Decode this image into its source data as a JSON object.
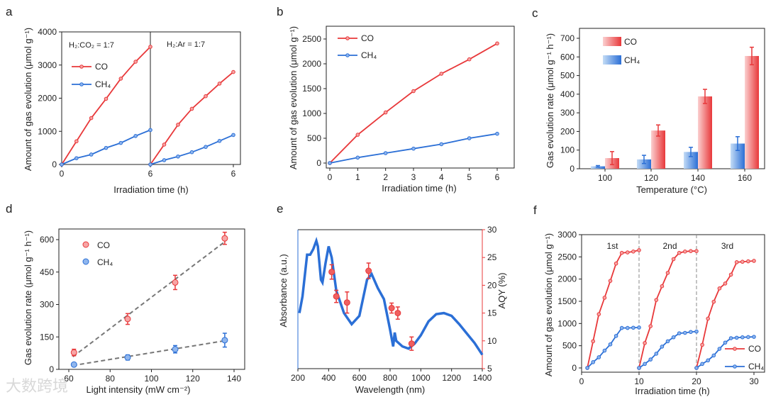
{
  "colors": {
    "co": "#e8383a",
    "ch4": "#2b6fd6",
    "fit": "#777777",
    "axis": "#222222"
  },
  "watermark": "大数跨境",
  "chart_data": [
    {
      "id": "a",
      "panel_label": "a",
      "type": "line",
      "ylabel": "Amount of gas evolution (μmol g⁻¹)",
      "xlabel": "Irradiation time (h)",
      "ylim": [
        0,
        4000
      ],
      "yticks": [
        0,
        1000,
        2000,
        3000,
        4000
      ],
      "subpanels": [
        {
          "annotation": "H₂:CO₂ = 1:7",
          "xlim": [
            0,
            6
          ],
          "xticks": [
            0,
            6
          ],
          "series": [
            {
              "name": "CO",
              "x": [
                0,
                1,
                2,
                3,
                4,
                5,
                6
              ],
              "values": [
                0,
                700,
                1400,
                1980,
                2590,
                3100,
                3550
              ]
            },
            {
              "name": "CH₄",
              "x": [
                0,
                1,
                2,
                3,
                4,
                5,
                6
              ],
              "values": [
                0,
                190,
                300,
                500,
                650,
                860,
                1040
              ]
            }
          ]
        },
        {
          "annotation": "H₂:Ar = 1:7",
          "xlim": [
            0,
            6
          ],
          "xticks": [
            6
          ],
          "series": [
            {
              "name": "CO",
              "x": [
                0,
                1,
                2,
                3,
                4,
                5,
                6
              ],
              "values": [
                0,
                600,
                1200,
                1680,
                2060,
                2440,
                2790
              ]
            },
            {
              "name": "CH₄",
              "x": [
                0,
                1,
                2,
                3,
                4,
                5,
                6
              ],
              "values": [
                0,
                130,
                240,
                370,
                530,
                710,
                890
              ]
            }
          ]
        }
      ],
      "legend": [
        "CO",
        "CH₄"
      ]
    },
    {
      "id": "b",
      "panel_label": "b",
      "type": "line",
      "ylabel": "Amount of gas evolution (μmol g⁻¹)",
      "xlabel": "Irradiation time (h)",
      "xlim": [
        0,
        6
      ],
      "xticks": [
        0,
        1,
        2,
        3,
        4,
        5,
        6
      ],
      "ylim": [
        0,
        2700
      ],
      "yticks": [
        0,
        500,
        1000,
        1500,
        2000,
        2500
      ],
      "series": [
        {
          "name": "CO",
          "x": [
            0,
            1,
            2,
            3,
            4,
            5,
            6
          ],
          "values": [
            0,
            570,
            1020,
            1450,
            1800,
            2090,
            2410
          ]
        },
        {
          "name": "CH₄",
          "x": [
            0,
            1,
            2,
            3,
            4,
            5,
            6
          ],
          "values": [
            0,
            110,
            200,
            290,
            380,
            500,
            590
          ]
        }
      ],
      "legend": [
        "CO",
        "CH₄"
      ]
    },
    {
      "id": "c",
      "panel_label": "c",
      "type": "bar",
      "ylabel": "Gas evolution rate (μmol g⁻¹ h⁻¹)",
      "xlabel": "Temperature (°C)",
      "categories": [
        "100",
        "120",
        "140",
        "160"
      ],
      "ylim": [
        0,
        750
      ],
      "yticks": [
        0,
        100,
        200,
        300,
        400,
        500,
        600,
        700
      ],
      "series": [
        {
          "name": "CH₄",
          "values": [
            13,
            50,
            90,
            135
          ],
          "errors": [
            4,
            22,
            25,
            37
          ]
        },
        {
          "name": "CO",
          "values": [
            57,
            205,
            388,
            605
          ],
          "errors": [
            35,
            30,
            38,
            47
          ]
        }
      ],
      "legend": [
        "CO",
        "CH₄"
      ]
    },
    {
      "id": "d",
      "panel_label": "d",
      "type": "scatter",
      "ylabel": "Gas evolution rate (μmol g⁻¹ h⁻¹)",
      "xlabel": "Light intensity (mW cm⁻²)",
      "xlim": [
        55,
        145
      ],
      "xticks": [
        60,
        80,
        100,
        120,
        140
      ],
      "ylim": [
        0,
        660
      ],
      "yticks": [
        0,
        150,
        300,
        450,
        600
      ],
      "series": [
        {
          "name": "CO",
          "x": [
            62.5,
            88.5,
            111.5,
            135.5
          ],
          "values": [
            78,
            233,
            402,
            606
          ],
          "errors": [
            15,
            25,
            33,
            28
          ],
          "fit": "linear"
        },
        {
          "name": "CH₄",
          "x": [
            62.5,
            88.5,
            111.5,
            135.5
          ],
          "values": [
            22,
            55,
            93,
            135
          ],
          "errors": [
            5,
            12,
            17,
            32
          ],
          "fit": "linear"
        }
      ],
      "legend": [
        "CO",
        "CH₄"
      ]
    },
    {
      "id": "e",
      "panel_label": "e",
      "type": "line+scatter",
      "ylabel": "Absorbance (a.u.)",
      "y2label": "AQY (%)",
      "xlabel": "Wavelength (nm)",
      "xlim": [
        200,
        1400
      ],
      "xticks": [
        200,
        400,
        600,
        800,
        1000,
        1200,
        1400
      ],
      "y2lim": [
        5,
        30
      ],
      "y2ticks": [
        5,
        10,
        15,
        20,
        25,
        30
      ],
      "absorbance": {
        "x": [
          210,
          230,
          260,
          280,
          300,
          320,
          330,
          350,
          360,
          380,
          400,
          420,
          450,
          500,
          550,
          600,
          650,
          680,
          720,
          760,
          800,
          820,
          830,
          840,
          880,
          920,
          960,
          1000,
          1050,
          1100,
          1150,
          1200,
          1250,
          1300,
          1350,
          1400
        ],
        "values": [
          15,
          18,
          25.5,
          25.5,
          26.5,
          28,
          27,
          21,
          20.5,
          24,
          27,
          25,
          19,
          15,
          13,
          14.5,
          21,
          22,
          19.5,
          17.5,
          12,
          9,
          11.5,
          10,
          9,
          8.6,
          9.5,
          11,
          13.5,
          14.8,
          15,
          14.5,
          13,
          11.3,
          9.6,
          7.5
        ]
      },
      "aqy": {
        "x": [
          420,
          450,
          520,
          660,
          810,
          850,
          940
        ],
        "values": [
          22.4,
          18,
          16.9,
          22.6,
          15.9,
          15,
          9.5
        ],
        "errors": [
          1.3,
          1.1,
          1.9,
          1.4,
          0.9,
          1.1,
          1.2
        ]
      }
    },
    {
      "id": "f",
      "panel_label": "f",
      "type": "line",
      "ylabel": "Amount of gas evolution (μmol g⁻¹)",
      "xlabel": "Irradiation time (h)",
      "xlim": [
        0,
        31
      ],
      "xticks": [
        0,
        10,
        20,
        30
      ],
      "ylim": [
        0,
        3000
      ],
      "yticks": [
        0,
        500,
        1000,
        1500,
        2000,
        2500,
        3000
      ],
      "cycle_dividers": [
        10,
        20
      ],
      "cycle_labels": [
        "1st",
        "2nd",
        "3rd"
      ],
      "series": [
        {
          "name": "CO",
          "runs": [
            {
              "x": [
                1,
                2,
                3,
                4,
                5,
                6,
                7,
                8,
                9,
                10
              ],
              "values": [
                0,
                600,
                1210,
                1580,
                1960,
                2350,
                2590,
                2600,
                2620,
                2650
              ]
            },
            {
              "x": [
                10,
                11,
                12,
                13,
                14,
                15,
                16,
                17,
                18,
                19,
                20
              ],
              "values": [
                0,
                560,
                940,
                1530,
                1840,
                2140,
                2450,
                2590,
                2620,
                2630,
                2630
              ]
            },
            {
              "x": [
                20,
                21,
                22,
                23,
                24,
                25,
                26,
                27,
                28,
                29,
                30
              ],
              "values": [
                0,
                520,
                1110,
                1490,
                1790,
                1900,
                2100,
                2380,
                2390,
                2400,
                2410
              ]
            }
          ]
        },
        {
          "name": "CH₄",
          "runs": [
            {
              "x": [
                1,
                2,
                3,
                4,
                5,
                6,
                7,
                8,
                9,
                10
              ],
              "values": [
                0,
                130,
                240,
                390,
                530,
                720,
                900,
                900,
                905,
                910
              ]
            },
            {
              "x": [
                10,
                11,
                12,
                13,
                14,
                15,
                16,
                17,
                18,
                19,
                20
              ],
              "values": [
                0,
                90,
                190,
                320,
                480,
                600,
                690,
                780,
                790,
                810,
                820
              ]
            },
            {
              "x": [
                20,
                21,
                22,
                23,
                24,
                25,
                26,
                27,
                28,
                29,
                30
              ],
              "values": [
                0,
                90,
                170,
                280,
                430,
                570,
                670,
                680,
                690,
                695,
                700
              ]
            }
          ]
        }
      ],
      "legend": [
        "CO",
        "CH₄"
      ]
    }
  ]
}
